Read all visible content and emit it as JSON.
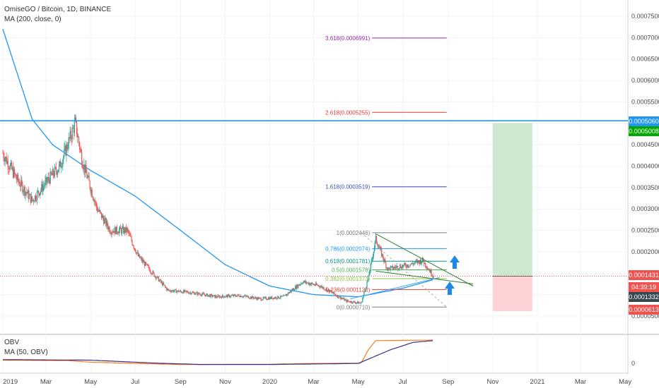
{
  "header": {
    "title": "OmiseGO / Bitcoin, 1D, BINANCE",
    "indicator": "MA (200, close, 0)"
  },
  "obv_panel": {
    "title": "OBV",
    "indicator": "MA (50, OBV)",
    "zero_label": "0"
  },
  "colors": {
    "candle_up": "#26a69a",
    "candle_down": "#ef5350",
    "ma200": "#2196f3",
    "obv": "#f57f17",
    "obv_ma": "#3f2a8c",
    "resistance": "#2196f3",
    "price_line": "#ef5350",
    "target_zone": "#c8e6c9",
    "stop_zone": "#ffcdd2",
    "arrow": "#1e88e5"
  },
  "chart_data": {
    "type": "candlestick",
    "y_axis": {
      "ticks": [
        "0.0007500",
        "0.0007000",
        "0.0006500",
        "0.0006000",
        "0.0005500",
        "0.0005000",
        "0.0004500",
        "0.0004000",
        "0.0003500",
        "0.0003000",
        "0.0002500",
        "0.0002000",
        "0.0001500",
        "0.0001000",
        "0.0000500"
      ],
      "min": 4e-05,
      "max": 0.00078
    },
    "x_axis": {
      "ticks": [
        "2019",
        "Mar",
        "May",
        "Jul",
        "Sep",
        "Nov",
        "2020",
        "Mar",
        "May",
        "Jul",
        "Sep",
        "Nov",
        "2021",
        "Mar",
        "May"
      ]
    },
    "price_path": [
      {
        "date": "2019-01-01",
        "price": 0.00043
      },
      {
        "date": "2019-01-20",
        "price": 0.00037
      },
      {
        "date": "2019-02-10",
        "price": 0.00032
      },
      {
        "date": "2019-03-05",
        "price": 0.00037
      },
      {
        "date": "2019-03-20",
        "price": 0.0004
      },
      {
        "date": "2019-04-10",
        "price": 0.0005
      },
      {
        "date": "2019-04-20",
        "price": 0.00041
      },
      {
        "date": "2019-05-10",
        "price": 0.0003
      },
      {
        "date": "2019-05-28",
        "price": 0.00025
      },
      {
        "date": "2019-06-20",
        "price": 0.00025
      },
      {
        "date": "2019-07-05",
        "price": 0.00019
      },
      {
        "date": "2019-07-20",
        "price": 0.00016
      },
      {
        "date": "2019-08-15",
        "price": 0.00011
      },
      {
        "date": "2019-09-15",
        "price": 0.000105
      },
      {
        "date": "2019-10-20",
        "price": 9.5e-05
      },
      {
        "date": "2019-11-20",
        "price": 9.8e-05
      },
      {
        "date": "2019-12-20",
        "price": 9e-05
      },
      {
        "date": "2020-01-20",
        "price": 9.5e-05
      },
      {
        "date": "2020-02-15",
        "price": 0.00013
      },
      {
        "date": "2020-03-10",
        "price": 0.00012
      },
      {
        "date": "2020-04-15",
        "price": 8.5e-05
      },
      {
        "date": "2020-05-05",
        "price": 8e-05
      },
      {
        "date": "2020-05-15",
        "price": 0.00014
      },
      {
        "date": "2020-05-25",
        "price": 0.00023
      },
      {
        "date": "2020-06-10",
        "price": 0.00016
      },
      {
        "date": "2020-07-10",
        "price": 0.00017
      },
      {
        "date": "2020-07-28",
        "price": 0.00018
      },
      {
        "date": "2020-08-12",
        "price": 0.000143
      }
    ],
    "ma200": [
      {
        "date": "2019-01-01",
        "value": 0.00072
      },
      {
        "date": "2019-02-10",
        "value": 0.00051
      },
      {
        "date": "2019-03-10",
        "value": 0.00045
      },
      {
        "date": "2019-05-01",
        "value": 0.00039
      },
      {
        "date": "2019-07-01",
        "value": 0.00033
      },
      {
        "date": "2019-09-01",
        "value": 0.00025
      },
      {
        "date": "2019-11-01",
        "value": 0.00017
      },
      {
        "date": "2020-01-01",
        "value": 0.00012
      },
      {
        "date": "2020-03-01",
        "value": 0.0001
      },
      {
        "date": "2020-05-01",
        "value": 9.5e-05
      },
      {
        "date": "2020-07-01",
        "value": 0.000115
      },
      {
        "date": "2020-08-12",
        "value": 0.000135
      }
    ],
    "fibonacci": [
      {
        "ratio": "3.618",
        "price": 0.0006991,
        "label": "3.618(0.0006991)",
        "color": "#9c27b0"
      },
      {
        "ratio": "2.618",
        "price": 0.0005255,
        "label": "2.618(0.0005255)",
        "color": "#e53935"
      },
      {
        "ratio": "1.618",
        "price": 0.0003519,
        "label": "1.618(0.0003519)",
        "color": "#3f51b5"
      },
      {
        "ratio": "1",
        "price": 0.0002446,
        "label": "1(0.0002446)",
        "color": "#787b86"
      },
      {
        "ratio": "0.786",
        "price": 0.0002074,
        "label": "0.786(0.0002074)",
        "color": "#2196f3"
      },
      {
        "ratio": "0.618",
        "price": 0.0001781,
        "label": "0.618(0.0001781)",
        "color": "#009688"
      },
      {
        "ratio": "0.5",
        "price": 0.0001578,
        "label": "0.5(0.0001578)",
        "color": "#4caf50"
      },
      {
        "ratio": "0.382",
        "price": 0.0001373,
        "label": "0.382(0.0001373)",
        "color": "#8bc34a"
      },
      {
        "ratio": "0.236",
        "price": 0.000112,
        "label": "0.236(0.0001120)",
        "color": "#e53935"
      },
      {
        "ratio": "0",
        "price": 7.1e-05,
        "label": "0(0.0000710)",
        "color": "#787b86"
      }
    ],
    "price_badges": [
      {
        "label": "0.0005060",
        "price": 0.000506,
        "color": "#2196f3"
      },
      {
        "label": "0.0005008",
        "price": 0.0005008,
        "color": "#00a800"
      },
      {
        "label": "0.0001431",
        "price": 0.0001431,
        "color": "#ef5350"
      },
      {
        "label": "04:39:19",
        "price": 0.000122,
        "color": "#ef5350"
      },
      {
        "label": "0.0001332",
        "price": 0.0001332,
        "color": "#37474f"
      },
      {
        "label": "0.0000613",
        "price": 6.13e-05,
        "color": "#ef5350"
      }
    ],
    "resistance_price": 0.000506,
    "current_price": 0.0001431,
    "position": {
      "entry": 0.0001431,
      "target": 0.0005008,
      "stop": 6.13e-05,
      "start": "2020-11-01",
      "end": "2020-12-25"
    },
    "obv_series": [
      {
        "date": "2019-01-01",
        "value": 0.18
      },
      {
        "date": "2019-04-01",
        "value": 0.16
      },
      {
        "date": "2019-05-01",
        "value": 0.1
      },
      {
        "date": "2019-07-01",
        "value": 0.05
      },
      {
        "date": "2019-09-01",
        "value": 0.01
      },
      {
        "date": "2020-01-01",
        "value": 0.02
      },
      {
        "date": "2020-03-01",
        "value": 0.05
      },
      {
        "date": "2020-05-05",
        "value": 0.06
      },
      {
        "date": "2020-05-15",
        "value": 0.6
      },
      {
        "date": "2020-05-25",
        "value": 0.95
      },
      {
        "date": "2020-07-01",
        "value": 0.96
      },
      {
        "date": "2020-08-12",
        "value": 0.97
      }
    ],
    "obv_ma_series": [
      {
        "date": "2019-01-01",
        "value": 0.2
      },
      {
        "date": "2019-05-01",
        "value": 0.18
      },
      {
        "date": "2019-08-01",
        "value": 0.06
      },
      {
        "date": "2019-10-01",
        "value": 0.01
      },
      {
        "date": "2020-01-01",
        "value": 0.01
      },
      {
        "date": "2020-05-01",
        "value": 0.05
      },
      {
        "date": "2020-06-15",
        "value": 0.6
      },
      {
        "date": "2020-07-15",
        "value": 0.88
      },
      {
        "date": "2020-08-12",
        "value": 0.95
      }
    ]
  }
}
